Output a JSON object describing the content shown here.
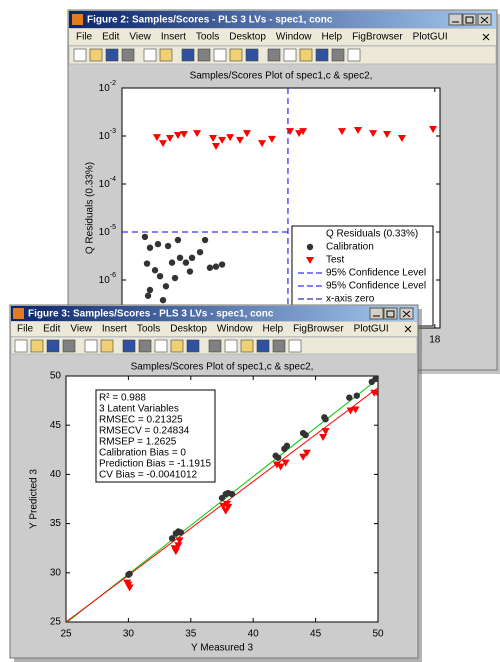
{
  "windows": [
    {
      "title": "Figure 2: Samples/Scores - PLS 3 LVs - spec1, conc",
      "menu": [
        "File",
        "Edit",
        "View",
        "Insert",
        "Tools",
        "Desktop",
        "Window",
        "Help",
        "FigBrowser",
        "PlotGUI"
      ],
      "plot": {
        "type": "scatter",
        "title": "Samples/Scores Plot of spec1,c & spec2,",
        "ylabel": "Q Residuals (0.33%)",
        "ylog": true,
        "xlim": [
          0,
          18.3
        ],
        "ylim": [
          1e-07,
          0.01
        ],
        "xticks": [
          18
        ],
        "yticks": [
          {
            "value": 0.01,
            "label": "10",
            "exponent": "-2"
          },
          {
            "value": 0.001,
            "label": "10",
            "exponent": "-3"
          },
          {
            "value": 0.0001,
            "label": "10",
            "exponent": "-4"
          },
          {
            "value": 1e-05,
            "label": "10",
            "exponent": "-5"
          },
          {
            "value": 1e-06,
            "label": "10",
            "exponent": "-6"
          }
        ],
        "legend_title": "Q Residuals (0.33%)",
        "series": [
          {
            "name": "Calibration",
            "color": "#333333",
            "marker": "circle",
            "x": [
              1.32,
              1.61,
              2.07,
              2.65,
              3.22,
              4.78,
              1.44,
              1.9,
              2.19,
              2.88,
              3.34,
              3.68,
              4.03,
              4.49,
              5.06,
              5.41,
              5.76,
              3.91,
              2.53,
              1.61,
              1.5,
              2.36,
              3.05
            ],
            "values": [
              7.9e-06,
              4.7e-06,
              5.6e-06,
              5.1e-06,
              6.8e-06,
              6.8e-06,
              2.2e-06,
              1.6e-06,
              1.2e-06,
              2.3e-06,
              2.9e-06,
              2.3e-06,
              2.9e-06,
              3.8e-06,
              1.8e-06,
              1.9e-06,
              2.1e-06,
              1.5e-06,
              7.4e-07,
              6.2e-07,
              4.7e-07,
              3.8e-07,
              1.1e-06
            ]
          },
          {
            "name": "Test",
            "color": "#ff0000",
            "marker": "triangle",
            "x": [
              2.01,
              2.36,
              2.76,
              3.22,
              3.57,
              4.32,
              5.24,
              5.41,
              5.76,
              6.22,
              6.79,
              7.19,
              8.06,
              8.63,
              9.67,
              10.19,
              10.42,
              12.66,
              13.58,
              14.45,
              15.25,
              16.11,
              17.9
            ],
            "values": [
              0.00095,
              0.00071,
              0.00091,
              0.00105,
              0.0011,
              0.00115,
              0.00091,
              0.00062,
              0.00083,
              0.00095,
              0.00083,
              0.00115,
              0.00071,
              0.00087,
              0.00126,
              0.00115,
              0.00126,
              0.00126,
              0.00133,
              0.00115,
              0.0011,
              0.00091,
              0.0014
            ]
          }
        ],
        "reference_lines": [
          {
            "name": "95% Confidence Level",
            "color": "#0000ff",
            "orientation": "horizontal",
            "value": 1e-05
          },
          {
            "name": "95% Confidence Level",
            "color": "#0000ff",
            "orientation": "vertical",
            "value": 9.55
          },
          {
            "name": "x-axis zero",
            "color": "#000080"
          }
        ]
      }
    },
    {
      "title": "Figure 3: Samples/Scores - PLS 3 LVs - spec1, conc",
      "menu": [
        "File",
        "Edit",
        "View",
        "Insert",
        "Tools",
        "Desktop",
        "Window",
        "Help",
        "FigBrowser",
        "PlotGUI"
      ],
      "plot": {
        "type": "scatter",
        "title": "Samples/Scores Plot of spec1,c & spec2,",
        "xlabel": "Y Measured 3",
        "ylabel": "Y Predicted 3",
        "xlim": [
          25,
          50
        ],
        "ylim": [
          25,
          50
        ],
        "xticks": [
          25,
          30,
          35,
          40,
          45,
          50
        ],
        "yticks": [
          25,
          30,
          35,
          40,
          45,
          50
        ],
        "series": [
          {
            "name": "Calibration",
            "color": "#333333",
            "marker": "circle",
            "x": [
              30,
              30.1,
              33.5,
              33.8,
              34,
              34.2,
              37.5,
              37.8,
              38,
              38.3,
              41.8,
              42,
              42.5,
              42.7,
              44,
              44.2,
              45.7,
              45.8,
              47.7,
              48.3,
              49.5,
              49.8
            ],
            "values": [
              29.8,
              29.9,
              33.5,
              34,
              34.2,
              34.1,
              37.6,
              38,
              38.1,
              38,
              41.9,
              41.7,
              42.6,
              42.9,
              44.2,
              44,
              45.8,
              45.6,
              47.8,
              48,
              49.4,
              49.7
            ]
          },
          {
            "name": "Test",
            "color": "#ff0000",
            "marker": "triangle",
            "x": [
              30,
              30.1,
              29.9,
              33.7,
              34,
              34.1,
              33.8,
              37.6,
              37.8,
              38,
              37.9,
              41.9,
              42.2,
              42.6,
              44,
              44.3,
              45.6,
              45.8,
              47.8,
              48.2,
              49.7,
              50
            ],
            "values": [
              28.8,
              28.5,
              29,
              32.5,
              32.8,
              33.3,
              32.2,
              36.8,
              36.3,
              36.7,
              37,
              41,
              40.8,
              41.2,
              41.8,
              42.2,
              43.8,
              44.4,
              46.5,
              46.6,
              48.3,
              48.2
            ]
          }
        ],
        "fit_lines": [
          {
            "color": "#00cc00",
            "x": [
              25,
              50
            ],
            "values": [
              24.9,
              49.7
            ]
          },
          {
            "color": "#ff0000",
            "x": [
              25,
              50
            ],
            "values": [
              25,
              48.8
            ]
          }
        ],
        "stats": [
          "R² = 0.988",
          "3 Latent Variables",
          "RMSEC = 0.21325",
          "RMSECV = 0.24834",
          "RMSEP = 1.2625",
          "Calibration Bias = 0",
          "Prediction Bias = -1.1915",
          "CV Bias = -0.0041012"
        ]
      }
    }
  ]
}
